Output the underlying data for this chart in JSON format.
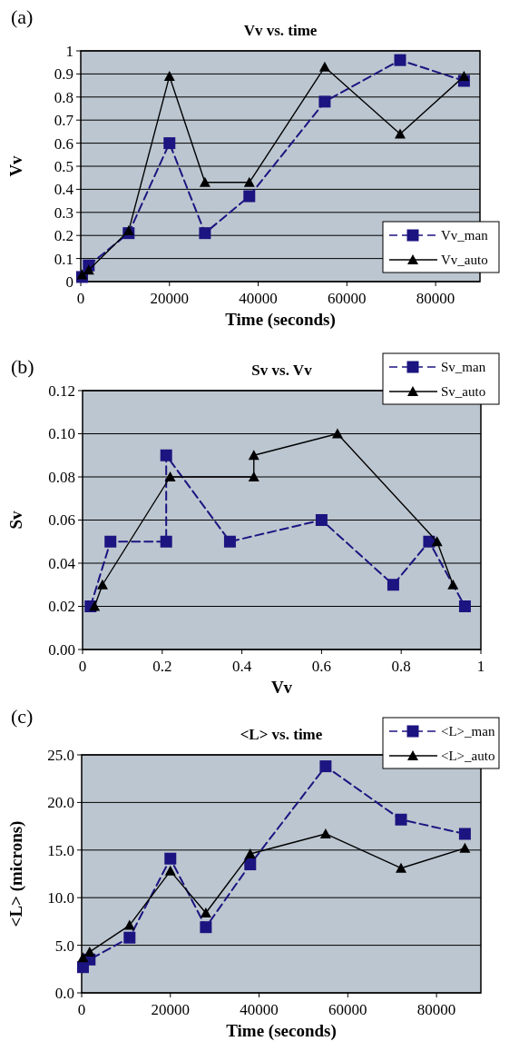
{
  "chart_data": [
    {
      "type": "line",
      "title": "Vv vs. time",
      "xlabel": "Time (seconds)",
      "ylabel": "Vv",
      "annotations": [
        "(a)"
      ],
      "xlim": [
        0,
        90000
      ],
      "xticks": [
        0,
        20000,
        40000,
        60000,
        80000
      ],
      "ylim": [
        0,
        1
      ],
      "yticks": [
        0,
        0.1,
        0.2,
        0.3,
        0.4,
        0.5,
        0.6,
        0.7,
        0.8,
        0.9,
        1
      ],
      "grid": "y",
      "legend": "bottom right",
      "x": [
        300,
        1800,
        10800,
        20000,
        28000,
        38000,
        55000,
        72000,
        86400
      ],
      "series": [
        {
          "name": "Vv_man",
          "color": "#1c1480",
          "marker": "square",
          "line_style": "dashed",
          "values": [
            0.02,
            0.07,
            0.21,
            0.6,
            0.21,
            0.37,
            0.78,
            0.96,
            0.87
          ]
        },
        {
          "name": "Vv_auto",
          "color": "#000000",
          "marker": "triangle",
          "line_style": "solid",
          "values": [
            0.03,
            0.05,
            0.22,
            0.89,
            0.43,
            0.43,
            0.93,
            0.64,
            0.89
          ]
        }
      ]
    },
    {
      "type": "line",
      "title": "Sv vs. Vv",
      "xlabel": "Vv",
      "ylabel": "Sv",
      "annotations": [
        "(b)"
      ],
      "xlim": [
        0,
        1
      ],
      "xticks": [
        0,
        0.2,
        0.4,
        0.6,
        0.8,
        1
      ],
      "ylim": [
        0,
        0.12
      ],
      "yticks": [
        {
          "value": 0,
          "label": "0.00"
        },
        {
          "value": 0.02,
          "label": "0.02"
        },
        {
          "value": 0.04,
          "label": "0.04"
        },
        {
          "value": 0.06,
          "label": "0.06"
        },
        {
          "value": 0.08,
          "label": "0.08"
        },
        {
          "value": 0.1,
          "label": "0.10"
        },
        {
          "value": 0.12,
          "label": "0.12"
        }
      ],
      "grid": "y",
      "legend": "top right",
      "series": [
        {
          "name": "Sv_man",
          "color": "#1c1480",
          "marker": "square",
          "line_style": "dashed",
          "x": [
            0.02,
            0.07,
            0.21,
            0.21,
            0.37,
            0.6,
            0.78,
            0.87,
            0.96
          ],
          "values": [
            0.02,
            0.05,
            0.05,
            0.09,
            0.05,
            0.06,
            0.03,
            0.05,
            0.02
          ]
        },
        {
          "name": "Sv_auto",
          "color": "#000000",
          "marker": "triangle",
          "line_style": "solid",
          "x": [
            0.03,
            0.05,
            0.22,
            0.43,
            0.43,
            0.64,
            0.89,
            0.93
          ],
          "values": [
            0.02,
            0.03,
            0.08,
            0.08,
            0.09,
            0.1,
            0.05,
            0.03
          ]
        }
      ]
    },
    {
      "type": "line",
      "title": "<L> vs. time",
      "xlabel": "Time (seconds)",
      "ylabel": "<L> (microns)",
      "annotations": [
        "(c)"
      ],
      "xlim": [
        0,
        90000
      ],
      "xticks": [
        0,
        20000,
        40000,
        60000,
        80000
      ],
      "ylim": [
        0,
        25
      ],
      "yticks": [
        {
          "value": 0,
          "label": "0.0"
        },
        {
          "value": 5,
          "label": "5.0"
        },
        {
          "value": 10,
          "label": "10.0"
        },
        {
          "value": 15,
          "label": "15.0"
        },
        {
          "value": 20,
          "label": "20.0"
        },
        {
          "value": 25,
          "label": "25.0"
        }
      ],
      "grid": "y",
      "legend": "top right",
      "x": [
        300,
        1800,
        10800,
        20000,
        28000,
        38000,
        55000,
        72000,
        86400
      ],
      "series": [
        {
          "name": "<L>_man",
          "color": "#1c1480",
          "marker": "square",
          "line_style": "dashed",
          "values": [
            2.7,
            3.5,
            5.8,
            14.1,
            6.9,
            13.5,
            23.8,
            18.2,
            16.7
          ]
        },
        {
          "name": "<L>_auto",
          "color": "#000000",
          "marker": "triangle",
          "line_style": "solid",
          "values": [
            3.7,
            4.3,
            7.1,
            12.8,
            8.4,
            14.6,
            16.7,
            13.1,
            15.2
          ]
        }
      ]
    }
  ]
}
